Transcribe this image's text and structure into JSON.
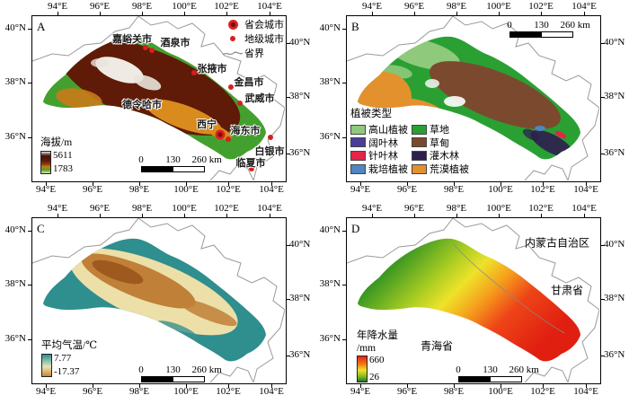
{
  "axis": {
    "lon": [
      "94°E",
      "96°E",
      "98°E",
      "100°E",
      "102°E",
      "104°E"
    ],
    "lat": [
      "40°N",
      "38°N",
      "36°N"
    ]
  },
  "scalebar": {
    "zero": "0",
    "mid": "130",
    "end": "260 km"
  },
  "panelA": {
    "letter": "A",
    "legend": {
      "title": "海拔/m",
      "max": "5611",
      "min": "1783",
      "ramp_colors": [
        "#f2efe9",
        "#5e1a08",
        "#8c3c10",
        "#c97c1c",
        "#52a028",
        "#d8e8a8"
      ]
    },
    "symbols": {
      "capital": "省会城市",
      "prefecture": "地级城市",
      "boundary": "省界"
    },
    "cities": [
      {
        "name": "嘉峪关市"
      },
      {
        "name": "酒泉市"
      },
      {
        "name": "张掖市"
      },
      {
        "name": "金昌市"
      },
      {
        "name": "武威市"
      },
      {
        "name": "德令哈市"
      },
      {
        "name": "西宁"
      },
      {
        "name": "海东市"
      },
      {
        "name": "白银市"
      },
      {
        "name": "临夏市"
      }
    ]
  },
  "panelB": {
    "letter": "B",
    "legend": {
      "title": "植被类型",
      "items": [
        {
          "label": "高山植被",
          "color": "#8fc97c"
        },
        {
          "label": "草地",
          "color": "#2aa033"
        },
        {
          "label": "阔叶林",
          "color": "#4a3e99"
        },
        {
          "label": "草甸",
          "color": "#7b4a2e"
        },
        {
          "label": "针叶林",
          "color": "#e32549"
        },
        {
          "label": "灌木林",
          "color": "#2e1f4e"
        },
        {
          "label": "栽培植被",
          "color": "#4e86c0"
        },
        {
          "label": "荒漠植被",
          "color": "#e3912d"
        }
      ]
    }
  },
  "panelC": {
    "letter": "C",
    "legend": {
      "title": "平均气温/℃",
      "max": "7.77",
      "min": "-17.37",
      "ramp_colors": [
        "#2f8e8e",
        "#e4e4be",
        "#c2853c"
      ]
    }
  },
  "panelD": {
    "letter": "D",
    "legend": {
      "title": "年降水量",
      "unit": "/mm",
      "max": "660",
      "min": "26",
      "ramp_colors": [
        "#e82315",
        "#ece32a",
        "#1d7a22"
      ]
    },
    "regions": [
      {
        "name": "内蒙古自治区"
      },
      {
        "name": "甘肃省"
      },
      {
        "name": "青海省"
      }
    ]
  }
}
